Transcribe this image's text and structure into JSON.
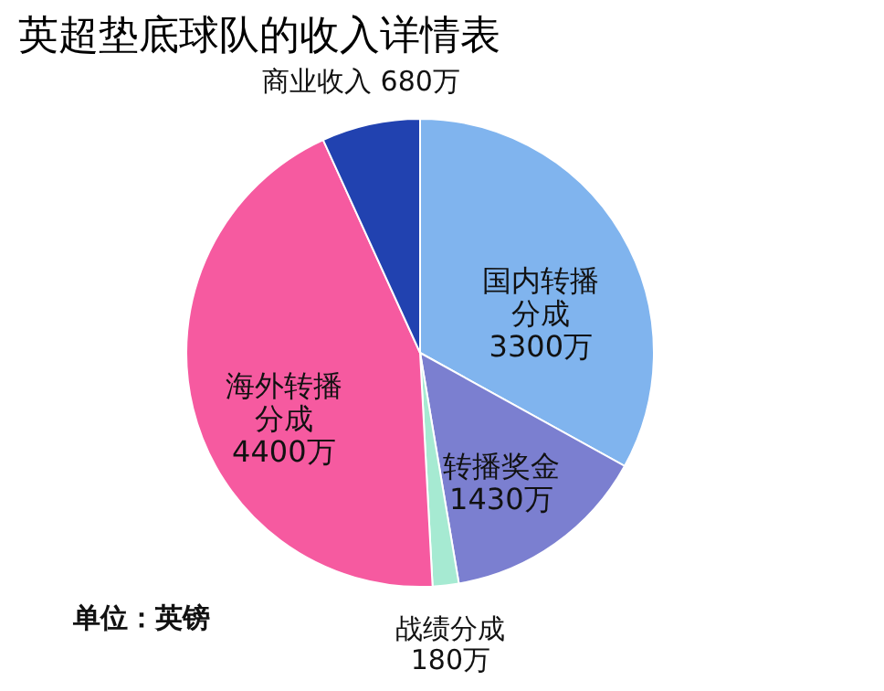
{
  "chart_data": {
    "type": "pie",
    "title": "英超垫底球队的收入详情表",
    "categories": [
      "国内转播分成",
      "转播奖金",
      "战绩分成",
      "海外转播分成",
      "商业收入"
    ],
    "values": [
      3300,
      1430,
      180,
      4400,
      680
    ],
    "value_labels": [
      "3300万",
      "1430万",
      "180万",
      "4400万",
      "680万"
    ],
    "colors": [
      "#80b4ee",
      "#7b7fd0",
      "#a6ead2",
      "#f65aa0",
      "#2142b0"
    ],
    "annotations": [
      "单位：英镑"
    ],
    "legend": false
  }
}
